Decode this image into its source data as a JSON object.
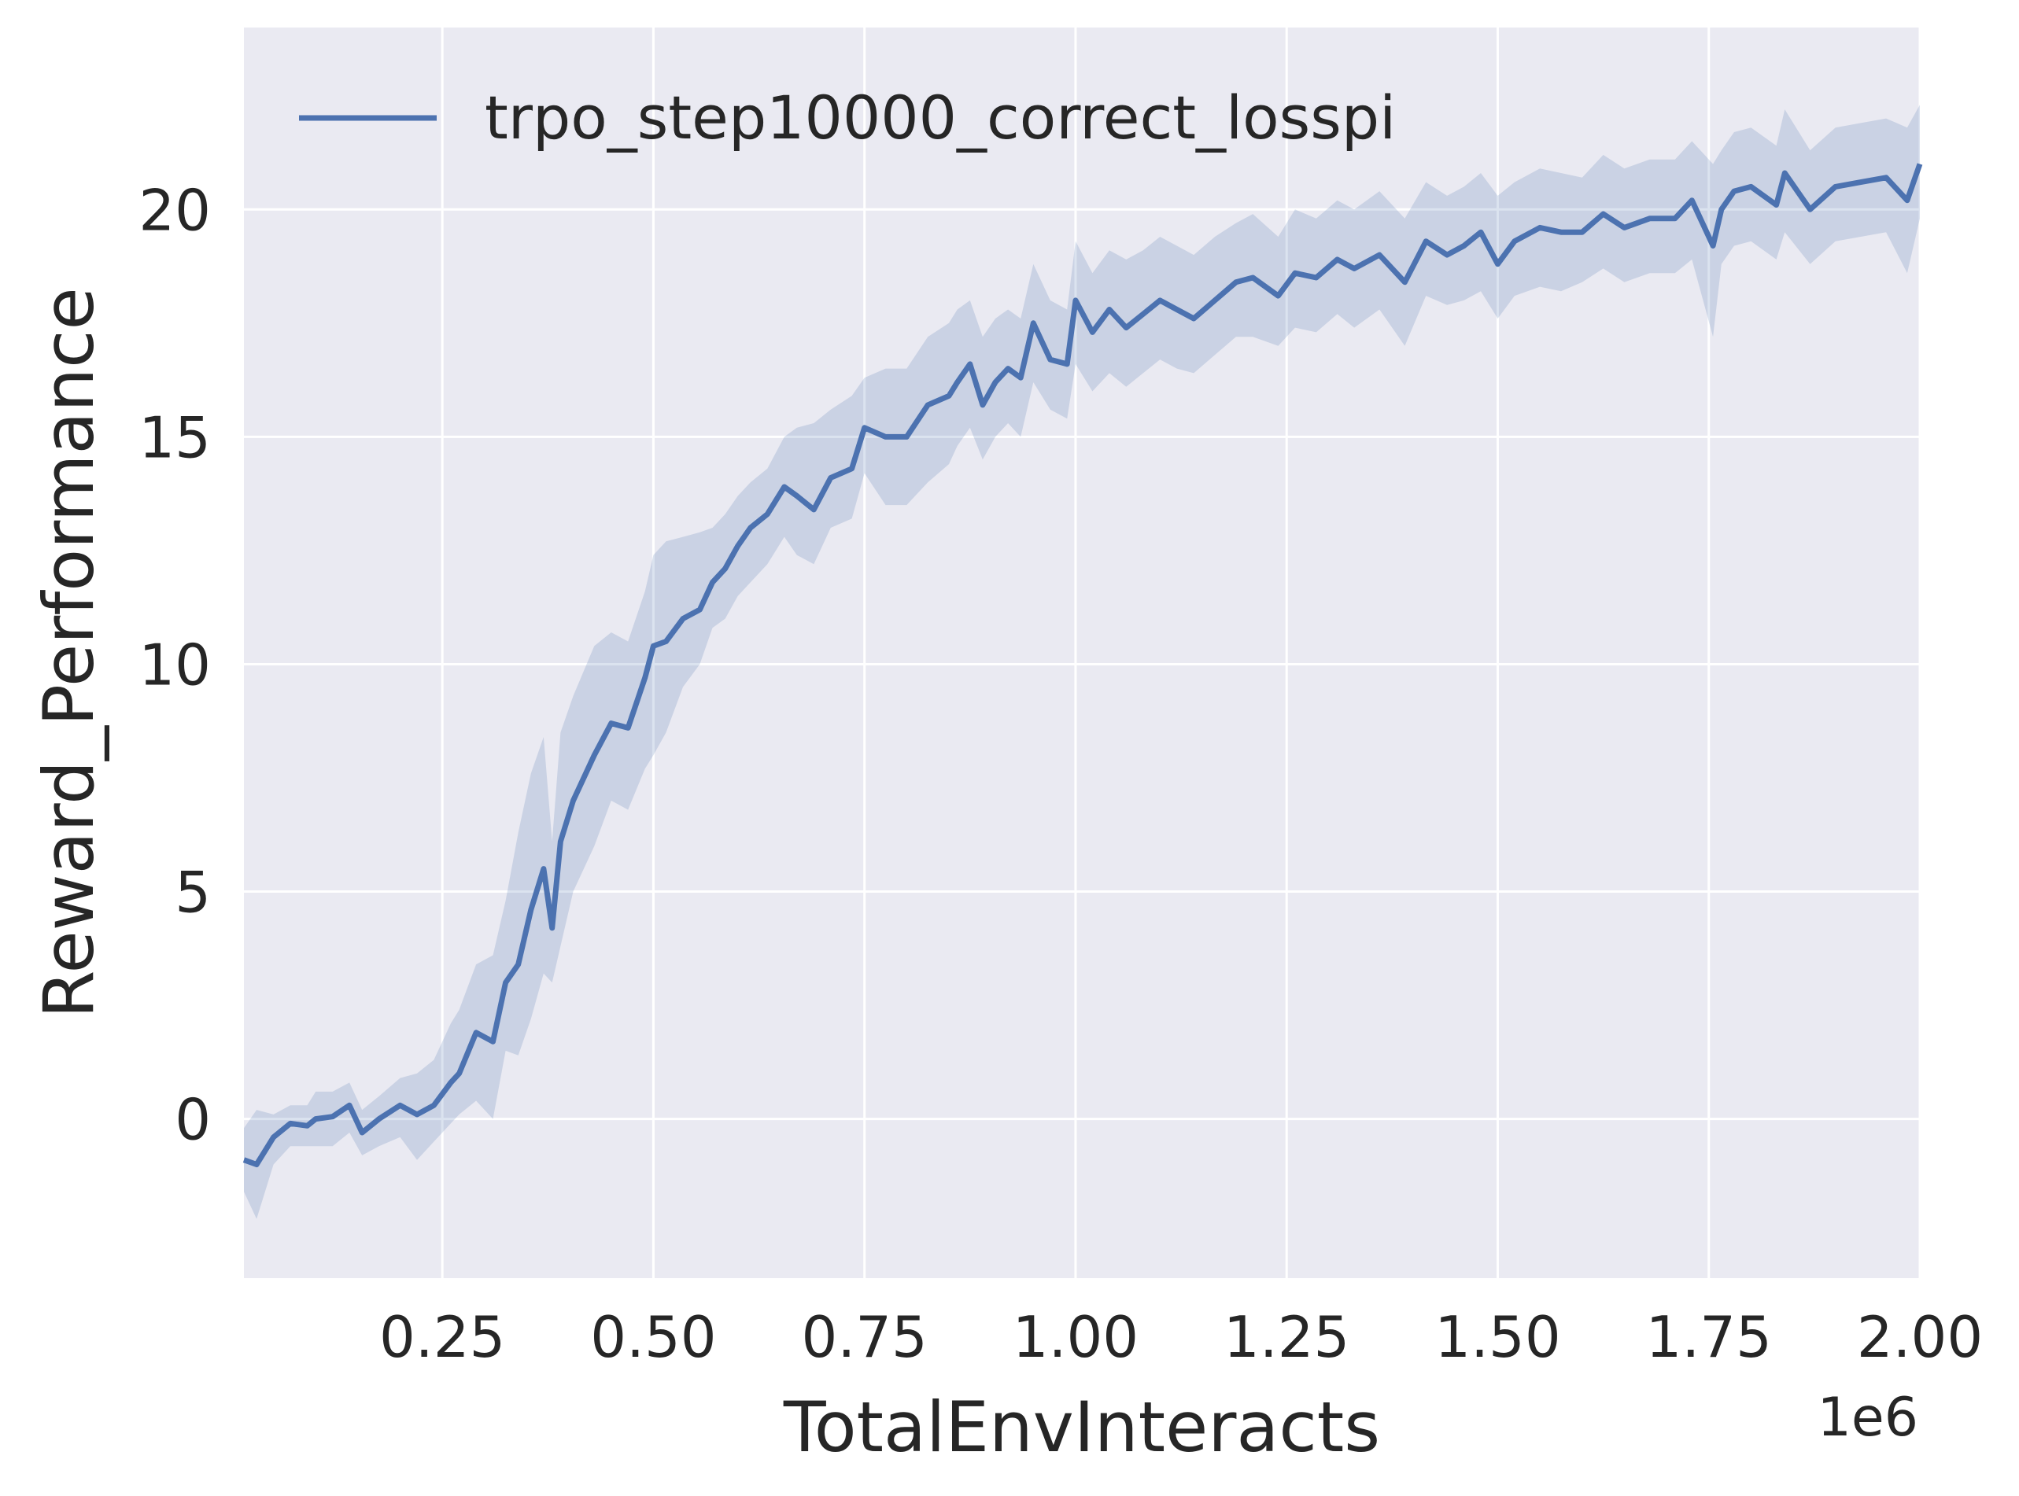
{
  "chart_data": {
    "type": "line",
    "xlabel": "TotalEnvInteracts",
    "ylabel": "Reward_Performance",
    "x_offset_label": "1e6",
    "xlim": [
      0.015,
      2.0
    ],
    "ylim": [
      -3.5,
      24.0
    ],
    "x_scale": 1000000,
    "x_ticks": [
      {
        "value": 0.25,
        "label": "0.25"
      },
      {
        "value": 0.5,
        "label": "0.50"
      },
      {
        "value": 0.75,
        "label": "0.75"
      },
      {
        "value": 1.0,
        "label": "1.00"
      },
      {
        "value": 1.25,
        "label": "1.25"
      },
      {
        "value": 1.5,
        "label": "1.50"
      },
      {
        "value": 1.75,
        "label": "1.75"
      },
      {
        "value": 2.0,
        "label": "2.00"
      }
    ],
    "y_ticks": [
      {
        "value": 0,
        "label": "0"
      },
      {
        "value": 5,
        "label": "5"
      },
      {
        "value": 10,
        "label": "10"
      },
      {
        "value": 15,
        "label": "15"
      },
      {
        "value": 20,
        "label": "20"
      }
    ],
    "grid": true,
    "legend_position": "top-left",
    "colors": {
      "background": "#eaeaf2",
      "grid": "#ffffff",
      "line": "#4c72b0",
      "band": "#4c72b0"
    },
    "series": [
      {
        "name": "trpo_step10000_correct_losspi",
        "x": [
          0.015,
          0.03,
          0.05,
          0.07,
          0.09,
          0.1,
          0.12,
          0.14,
          0.155,
          0.175,
          0.2,
          0.22,
          0.24,
          0.26,
          0.27,
          0.29,
          0.31,
          0.325,
          0.34,
          0.355,
          0.37,
          0.38,
          0.39,
          0.405,
          0.43,
          0.45,
          0.47,
          0.49,
          0.5,
          0.515,
          0.535,
          0.555,
          0.57,
          0.585,
          0.6,
          0.615,
          0.635,
          0.655,
          0.67,
          0.69,
          0.71,
          0.735,
          0.75,
          0.775,
          0.8,
          0.825,
          0.85,
          0.86,
          0.875,
          0.89,
          0.905,
          0.92,
          0.935,
          0.95,
          0.97,
          0.99,
          1.0,
          1.02,
          1.04,
          1.06,
          1.08,
          1.1,
          1.12,
          1.14,
          1.165,
          1.19,
          1.21,
          1.24,
          1.26,
          1.285,
          1.31,
          1.33,
          1.36,
          1.39,
          1.415,
          1.44,
          1.46,
          1.48,
          1.5,
          1.52,
          1.55,
          1.575,
          1.6,
          1.625,
          1.65,
          1.68,
          1.71,
          1.73,
          1.755,
          1.765,
          1.78,
          1.8,
          1.83,
          1.84,
          1.87,
          1.9,
          1.93,
          1.96,
          1.985,
          2.0
        ],
        "y": [
          -0.9,
          -1.0,
          -0.4,
          -0.1,
          -0.15,
          0.0,
          0.05,
          0.3,
          -0.3,
          0.0,
          0.3,
          0.1,
          0.3,
          0.8,
          1.0,
          1.9,
          1.7,
          3.0,
          3.4,
          4.6,
          5.5,
          4.2,
          6.1,
          7.0,
          8.0,
          8.7,
          8.6,
          9.7,
          10.4,
          10.5,
          11.0,
          11.2,
          11.8,
          12.1,
          12.6,
          13.0,
          13.3,
          13.9,
          13.7,
          13.4,
          14.1,
          14.3,
          15.2,
          15.0,
          15.0,
          15.7,
          15.9,
          16.2,
          16.6,
          15.7,
          16.2,
          16.5,
          16.3,
          17.5,
          16.7,
          16.6,
          18.0,
          17.3,
          17.8,
          17.4,
          17.7,
          18.0,
          17.8,
          17.6,
          18.0,
          18.4,
          18.5,
          18.1,
          18.6,
          18.5,
          18.9,
          18.7,
          19.0,
          18.4,
          19.3,
          19.0,
          19.2,
          19.5,
          18.8,
          19.3,
          19.6,
          19.5,
          19.5,
          19.9,
          19.6,
          19.8,
          19.8,
          20.2,
          19.2,
          20.0,
          20.4,
          20.5,
          20.1,
          20.8,
          20.0,
          20.5,
          20.6,
          20.7,
          20.2,
          21.0
        ],
        "lower": [
          -1.6,
          -2.2,
          -1.0,
          -0.6,
          -0.6,
          -0.6,
          -0.6,
          -0.3,
          -0.8,
          -0.6,
          -0.4,
          -0.9,
          -0.5,
          -0.1,
          0.1,
          0.4,
          0.0,
          1.5,
          1.4,
          2.2,
          3.2,
          3.0,
          3.8,
          5.0,
          6.0,
          7.0,
          6.8,
          7.7,
          8.0,
          8.5,
          9.5,
          10.0,
          10.8,
          11.0,
          11.5,
          11.8,
          12.2,
          12.8,
          12.4,
          12.2,
          13.0,
          13.2,
          14.2,
          13.5,
          13.5,
          14.0,
          14.4,
          14.8,
          15.2,
          14.5,
          15.0,
          15.3,
          15.0,
          16.2,
          15.6,
          15.4,
          16.6,
          16.0,
          16.4,
          16.1,
          16.4,
          16.7,
          16.5,
          16.4,
          16.8,
          17.2,
          17.2,
          17.0,
          17.4,
          17.3,
          17.7,
          17.4,
          17.8,
          17.0,
          18.1,
          17.9,
          18.0,
          18.2,
          17.6,
          18.1,
          18.3,
          18.2,
          18.4,
          18.7,
          18.4,
          18.6,
          18.6,
          18.9,
          17.2,
          18.8,
          19.2,
          19.3,
          18.9,
          19.5,
          18.8,
          19.3,
          19.4,
          19.5,
          18.6,
          19.8
        ],
        "upper": [
          -0.2,
          0.2,
          0.1,
          0.3,
          0.3,
          0.6,
          0.6,
          0.8,
          0.2,
          0.5,
          0.9,
          1.0,
          1.3,
          2.1,
          2.4,
          3.4,
          3.6,
          4.8,
          6.3,
          7.6,
          8.4,
          6.1,
          8.5,
          9.3,
          10.4,
          10.7,
          10.5,
          11.6,
          12.4,
          12.7,
          12.8,
          12.9,
          13.0,
          13.3,
          13.7,
          14.0,
          14.3,
          15.0,
          15.2,
          15.3,
          15.6,
          15.9,
          16.3,
          16.5,
          16.5,
          17.2,
          17.5,
          17.8,
          18.0,
          17.2,
          17.6,
          17.8,
          17.6,
          18.8,
          18.0,
          17.8,
          19.3,
          18.6,
          19.1,
          18.9,
          19.1,
          19.4,
          19.2,
          19.0,
          19.4,
          19.7,
          19.9,
          19.4,
          20.0,
          19.8,
          20.2,
          20.0,
          20.4,
          19.8,
          20.6,
          20.3,
          20.5,
          20.8,
          20.3,
          20.6,
          20.9,
          20.8,
          20.7,
          21.2,
          20.9,
          21.1,
          21.1,
          21.5,
          21.0,
          21.3,
          21.7,
          21.8,
          21.4,
          22.2,
          21.3,
          21.8,
          21.9,
          22.0,
          21.8,
          22.3
        ]
      }
    ]
  }
}
